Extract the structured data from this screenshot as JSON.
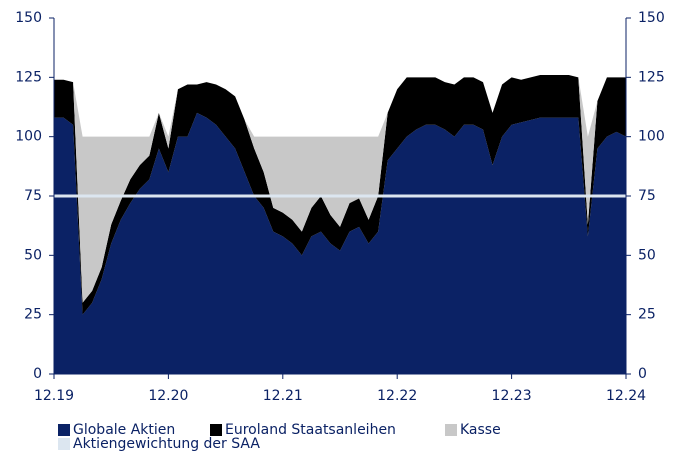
{
  "chart_data": {
    "type": "stacked-area",
    "x": [
      "12.19",
      "01.20",
      "02.20",
      "03.20",
      "04.20",
      "05.20",
      "06.20",
      "07.20",
      "08.20",
      "09.20",
      "10.20",
      "11.20",
      "12.20",
      "01.21",
      "02.21",
      "03.21",
      "04.21",
      "05.21",
      "06.21",
      "07.21",
      "08.21",
      "09.21",
      "10.21",
      "11.21",
      "12.21",
      "01.22",
      "02.22",
      "03.22",
      "04.22",
      "05.22",
      "06.22",
      "07.22",
      "08.22",
      "09.22",
      "10.22",
      "11.22",
      "12.22",
      "01.23",
      "02.23",
      "03.23",
      "04.23",
      "05.23",
      "06.23",
      "07.23",
      "08.23",
      "09.23",
      "10.23",
      "11.23",
      "12.23",
      "01.24",
      "02.24",
      "03.24",
      "04.24",
      "05.24",
      "06.24",
      "07.24",
      "08.24",
      "09.24",
      "10.24",
      "11.24",
      "12.24"
    ],
    "xticks": [
      "12.19",
      "12.20",
      "12.21",
      "12.22",
      "12.23",
      "12.24"
    ],
    "series": [
      {
        "name": "Globale Aktien",
        "color": "#0b2265",
        "values": [
          108,
          108,
          105,
          25,
          30,
          40,
          55,
          65,
          72,
          78,
          82,
          95,
          85,
          100,
          100,
          110,
          108,
          105,
          100,
          95,
          85,
          75,
          70,
          60,
          58,
          55,
          50,
          58,
          60,
          55,
          52,
          60,
          62,
          55,
          60,
          90,
          95,
          100,
          103,
          105,
          105,
          103,
          100,
          105,
          105,
          103,
          88,
          100,
          105,
          106,
          107,
          108,
          108,
          108,
          108,
          108,
          58,
          95,
          100,
          102,
          100
        ]
      },
      {
        "name": "Euroland Staatsanleihen",
        "color": "#000000",
        "values": [
          16,
          16,
          18,
          5,
          5,
          5,
          8,
          8,
          10,
          10,
          10,
          15,
          10,
          20,
          22,
          12,
          15,
          17,
          20,
          22,
          22,
          20,
          15,
          10,
          10,
          10,
          10,
          12,
          15,
          12,
          10,
          12,
          12,
          10,
          15,
          20,
          25,
          25,
          22,
          20,
          20,
          20,
          22,
          20,
          20,
          20,
          22,
          22,
          20,
          18,
          18,
          18,
          18,
          18,
          18,
          17,
          5,
          20,
          25,
          23,
          25
        ]
      },
      {
        "name": "Kasse",
        "color": "#c8c8c8",
        "values": [
          0,
          0,
          0,
          70,
          65,
          55,
          37,
          27,
          18,
          12,
          8,
          0,
          5,
          0,
          0,
          0,
          0,
          0,
          0,
          0,
          0,
          5,
          15,
          30,
          32,
          35,
          40,
          30,
          25,
          33,
          38,
          28,
          26,
          35,
          25,
          0,
          0,
          0,
          0,
          0,
          0,
          0,
          0,
          0,
          0,
          0,
          0,
          0,
          0,
          0,
          0,
          0,
          0,
          0,
          0,
          0,
          37,
          0,
          0,
          0,
          0
        ]
      }
    ],
    "lines": [
      {
        "name": "Aktiengewichtung der SAA",
        "color": "#dce6f0",
        "value": 75
      }
    ],
    "ylim": [
      0,
      150
    ],
    "yticks": [
      0,
      25,
      50,
      75,
      100,
      125,
      150
    ],
    "y2lim": [
      0,
      150
    ],
    "y2ticks": [
      0,
      25,
      50,
      75,
      100,
      125,
      150
    ]
  }
}
